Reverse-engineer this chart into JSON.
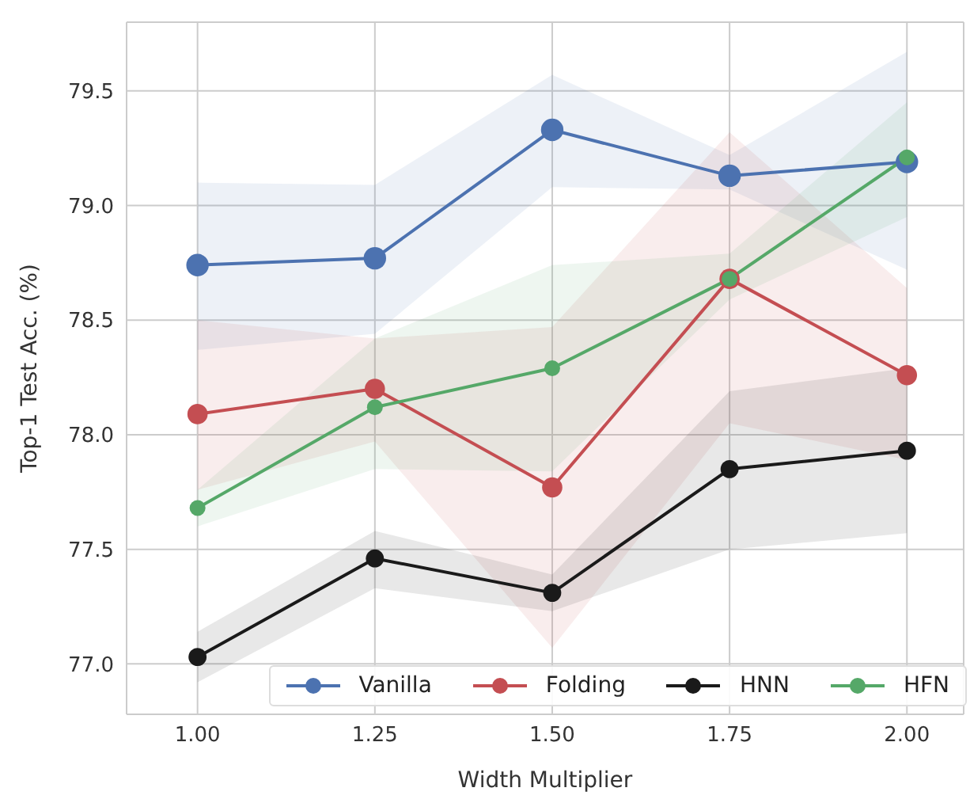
{
  "chart_data": {
    "type": "line",
    "xlabel": "Width Multiplier",
    "ylabel": "Top-1 Test Acc. (%)",
    "x": [
      1.0,
      1.25,
      1.5,
      1.75,
      2.0
    ],
    "xlim": [
      0.9,
      2.08
    ],
    "xticks": [
      {
        "value": 1,
        "label": "1.00"
      },
      {
        "value": 1.25,
        "label": "1.25"
      },
      {
        "value": 1.5,
        "label": "1.50"
      },
      {
        "value": 1.75,
        "label": "1.75"
      },
      {
        "value": 2,
        "label": "2.00"
      }
    ],
    "ylim": [
      76.78,
      79.8
    ],
    "yticks": [
      {
        "value": 77,
        "label": "77.0"
      },
      {
        "value": 77.5,
        "label": "77.5"
      },
      {
        "value": 78,
        "label": "78.0"
      },
      {
        "value": 78.5,
        "label": "78.5"
      },
      {
        "value": 79,
        "label": "79.0"
      },
      {
        "value": 79.5,
        "label": "79.5"
      }
    ],
    "grid": true,
    "legend": "lower right",
    "marker": "circle",
    "line_style": "solid",
    "series": [
      {
        "name": "Vanilla",
        "color": "#4c72b0",
        "values": [
          78.74,
          78.77,
          79.33,
          79.13,
          79.19
        ],
        "lower": [
          78.37,
          78.44,
          79.08,
          79.07,
          78.72
        ],
        "upper": [
          79.1,
          79.09,
          79.57,
          79.22,
          79.67
        ]
      },
      {
        "name": "Folding",
        "color": "#c44e52",
        "values": [
          78.09,
          78.2,
          77.77,
          78.68,
          78.26
        ],
        "lower": [
          77.76,
          77.97,
          77.07,
          78.05,
          77.89
        ],
        "upper": [
          78.5,
          78.42,
          78.47,
          79.32,
          78.64
        ]
      },
      {
        "name": "HNN",
        "color": "#1a1a1a",
        "values": [
          77.03,
          77.46,
          77.31,
          77.85,
          77.93
        ],
        "lower": [
          76.92,
          77.33,
          77.23,
          77.5,
          77.57
        ],
        "upper": [
          77.14,
          77.58,
          77.39,
          78.19,
          78.29
        ]
      },
      {
        "name": "HFN",
        "color": "#55a868",
        "values": [
          77.68,
          78.12,
          78.29,
          78.68,
          79.21
        ],
        "lower": [
          77.6,
          77.85,
          77.84,
          78.59,
          78.95
        ],
        "upper": [
          77.76,
          78.42,
          78.74,
          78.79,
          79.45
        ]
      }
    ]
  }
}
